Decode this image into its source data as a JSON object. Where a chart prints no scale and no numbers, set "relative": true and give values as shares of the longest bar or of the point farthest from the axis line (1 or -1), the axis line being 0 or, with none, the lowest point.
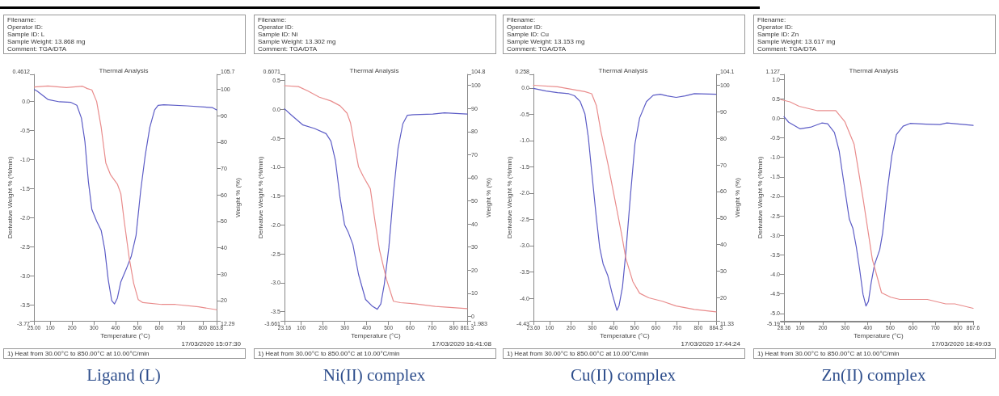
{
  "chart_data": [
    {
      "type": "line",
      "title": "Ligand (L)",
      "subtitle": "Thermal Analysis",
      "xlabel": "Temperature (°C)",
      "ylabel": "Derivative Weight % (%/min)",
      "y2label": "Weight % (%)",
      "marker": "none",
      "line_style": "solid",
      "grid": false,
      "annotations": [
        "Filename:",
        "Operator ID:",
        "Sample ID: L",
        "Sample Weight: 13.868 mg",
        "Comment: TGA/DTA",
        "17/03/2020 15:07:30",
        "1) Heat from 30.00°C to 850.00°C at 10.00°C/min"
      ],
      "xlim": [
        25,
        863.8
      ],
      "xticks": [
        {
          "value": 25,
          "label": "25.00"
        },
        100,
        200,
        300,
        400,
        500,
        600,
        700,
        800,
        863.8
      ],
      "ylim": [
        -3.77,
        0.4612
      ],
      "yticks": [
        0.4612,
        {
          "value": 0,
          "label": "0.0"
        },
        -0.5,
        {
          "value": -1,
          "label": "-1.0"
        },
        -1.5,
        {
          "value": -2,
          "label": "-2.0"
        },
        -2.5,
        {
          "value": -3,
          "label": "-3.0"
        },
        -3.5,
        -3.77
      ],
      "y2lim": [
        12.29,
        105.7
      ],
      "y2ticks": [
        12.29,
        20,
        30,
        40,
        50,
        60,
        70,
        80,
        90,
        100,
        105.7
      ],
      "series": [
        {
          "color": "#5c5cc6",
          "x": [
            27,
            41,
            89,
            142,
            195,
            222,
            243,
            259,
            275,
            291,
            313,
            334,
            350,
            366,
            382,
            395,
            408,
            424,
            451,
            472,
            494,
            515,
            536,
            557,
            579,
            595,
            621,
            728,
            845,
            863.8
          ],
          "values": [
            0.2,
            0.17,
            0.03,
            -0.01,
            -0.02,
            -0.07,
            -0.29,
            -0.69,
            -1.38,
            -1.86,
            -2.06,
            -2.22,
            -2.54,
            -3.06,
            -3.42,
            -3.48,
            -3.38,
            -3.1,
            -2.86,
            -2.66,
            -2.3,
            -1.54,
            -0.93,
            -0.45,
            -0.15,
            -0.07,
            -0.06,
            -0.08,
            -0.11,
            -0.15
          ]
        },
        {
          "color": "#e98c8c",
          "axis": "y2",
          "x": [
            27,
            89,
            174,
            248,
            270,
            291,
            313,
            334,
            355,
            377,
            408,
            424,
            440,
            462,
            483,
            504,
            525,
            611,
            675,
            781,
            863.8
          ],
          "values": [
            100.9,
            101.3,
            100.7,
            101.2,
            100.3,
            99.8,
            95.4,
            85.5,
            72.1,
            67.6,
            64.1,
            60.5,
            49.8,
            36.4,
            26.5,
            20.3,
            19.2,
            18.5,
            18.5,
            17.6,
            16.5
          ]
        }
      ]
    },
    {
      "type": "line",
      "title": "Ni(II) complex",
      "subtitle": "Thermal Analysis",
      "xlabel": "Temperature (°C)",
      "ylabel": "Derivative Weight % (%/min)",
      "y2label": "Weight % (%)",
      "marker": "none",
      "line_style": "solid",
      "grid": false,
      "annotations": [
        "Filename:",
        "Operator ID:",
        "Sample ID: Ni",
        "Sample Weight: 13.302 mg",
        "Comment: TGA/DTA",
        "17/03/2020 16:41:08",
        "1) Heat from 30.00°C to 850.00°C at 10.00°C/min"
      ],
      "xlim": [
        23.16,
        861.3
      ],
      "xticks": [
        23.16,
        100,
        200,
        300,
        400,
        500,
        600,
        700,
        800,
        861.3
      ],
      "ylim": [
        -3.661,
        0.6071
      ],
      "yticks": [
        0.6071,
        0.5,
        {
          "value": 0,
          "label": "0.0"
        },
        -0.5,
        {
          "value": -1,
          "label": "-1.0"
        },
        -1.5,
        {
          "value": -2,
          "label": "-2.0"
        },
        -2.5,
        {
          "value": -3,
          "label": "-3.0"
        },
        -3.5,
        -3.661
      ],
      "y2lim": [
        -1.983,
        104.8
      ],
      "y2ticks": [
        -1.983,
        0,
        10,
        20,
        30,
        40,
        50,
        60,
        70,
        80,
        90,
        100,
        104.8
      ],
      "series": [
        {
          "color": "#5c5cc6",
          "x": [
            23.16,
            55,
            108,
            161,
            214,
            236,
            257,
            278,
            299,
            316,
            337,
            363,
            395,
            427,
            449,
            465,
            481,
            502,
            523,
            544,
            566,
            587,
            619,
            704,
            757,
            861.3
          ],
          "values": [
            0.01,
            -0.1,
            -0.27,
            -0.33,
            -0.42,
            -0.55,
            -0.89,
            -1.53,
            -2.0,
            -2.13,
            -2.34,
            -2.86,
            -3.29,
            -3.41,
            -3.46,
            -3.37,
            -3.03,
            -2.39,
            -1.45,
            -0.68,
            -0.25,
            -0.1,
            -0.09,
            -0.08,
            -0.06,
            -0.08
          ]
        },
        {
          "color": "#e98c8c",
          "axis": "y2",
          "x": [
            23.16,
            87,
            130,
            183,
            236,
            278,
            310,
            326,
            342,
            363,
            385,
            417,
            438,
            459,
            491,
            523,
            555,
            619,
            715,
            861.3
          ],
          "values": [
            99.9,
            99.5,
            97.6,
            94.9,
            93.3,
            91.2,
            88.0,
            83.8,
            75.3,
            64.7,
            60.5,
            55.2,
            41.4,
            28.7,
            16.0,
            6.5,
            5.9,
            5.4,
            4.3,
            3.3
          ]
        }
      ]
    },
    {
      "type": "line",
      "title": "Cu(II) complex",
      "subtitle": "Thermal Analysis",
      "xlabel": "Temperature (°C)",
      "ylabel": "Derivative Weight % (%/min)",
      "y2label": "Weight % (%)",
      "marker": "none",
      "line_style": "solid",
      "grid": false,
      "annotations": [
        "Filename:",
        "Operator ID:",
        "Sample ID: Cu",
        "Sample Weight: 13.153 mg",
        "Comment: TGA/DTA",
        "17/03/2020 17:44:24",
        "1) Heat from 30.00°C to 850.00°C at 10.00°C/min"
      ],
      "xlim": [
        23.6,
        884.3
      ],
      "xticks": [
        {
          "value": 23.6,
          "label": "23.60"
        },
        100,
        200,
        300,
        400,
        500,
        600,
        700,
        800,
        884.3
      ],
      "ylim": [
        -4.43,
        0.258
      ],
      "yticks": [
        0.258,
        {
          "value": 0,
          "label": "0.0"
        },
        -0.5,
        {
          "value": -1,
          "label": "-1.0"
        },
        -1.5,
        {
          "value": -2,
          "label": "-2.0"
        },
        -2.5,
        {
          "value": -3,
          "label": "-3.0"
        },
        -3.5,
        {
          "value": -4,
          "label": "-4.0"
        },
        -4.43
      ],
      "y2lim": [
        11.33,
        104.1
      ],
      "y2ticks": [
        11.33,
        20,
        30,
        40,
        50,
        60,
        70,
        80,
        90,
        100,
        104.1
      ],
      "series": [
        {
          "color": "#5c5cc6",
          "x": [
            23.6,
            83,
            137,
            190,
            217,
            244,
            266,
            282,
            298,
            320,
            336,
            352,
            374,
            395,
            417,
            427,
            443,
            459,
            481,
            502,
            524,
            556,
            588,
            621,
            653,
            696,
            739,
            782,
            884.3
          ],
          "values": [
            -0.01,
            -0.06,
            -0.09,
            -0.11,
            -0.15,
            -0.26,
            -0.49,
            -0.93,
            -1.59,
            -2.47,
            -3.04,
            -3.35,
            -3.57,
            -3.92,
            -4.23,
            -4.14,
            -3.79,
            -3.13,
            -2.03,
            -1.06,
            -0.57,
            -0.26,
            -0.14,
            -0.12,
            -0.15,
            -0.18,
            -0.15,
            -0.11,
            -0.12
          ]
        },
        {
          "color": "#e98c8c",
          "axis": "y2",
          "x": [
            23.6,
            137,
            201,
            266,
            298,
            320,
            341,
            374,
            406,
            438,
            459,
            492,
            524,
            567,
            631,
            696,
            782,
            884.3
          ],
          "values": [
            100,
            99.4,
            98.5,
            97.6,
            96.8,
            92.4,
            82.8,
            70.6,
            57.5,
            44.4,
            34.8,
            26.1,
            21.7,
            20.0,
            18.7,
            16.9,
            15.6,
            14.7
          ]
        }
      ]
    },
    {
      "type": "line",
      "title": "Zn(II) complex",
      "subtitle": "Thermal Analysis",
      "xlabel": "Temperature (°C)",
      "ylabel": "Derivative Weight % (%/min)",
      "marker": "none",
      "line_style": "solid",
      "grid": false,
      "annotations": [
        "Filename:",
        "Operator ID:",
        "Sample ID: Zn",
        "Sample Weight: 13.617 mg",
        "Comment: TGA/DTA",
        "17/03/2020 18:49:03",
        "1) Heat from 30.00°C to 850.00°C at 10.00°C/min"
      ],
      "xlim": [
        28.36,
        867.6
      ],
      "xticks": [
        28.36,
        100,
        200,
        300,
        400,
        500,
        600,
        700,
        800,
        867.6
      ],
      "ylim": [
        -5.19,
        1.127
      ],
      "yticks": [
        1.127,
        {
          "value": 1,
          "label": "1.0"
        },
        0.5,
        {
          "value": 0,
          "label": "0.0"
        },
        -0.5,
        {
          "value": -1,
          "label": "-1.0"
        },
        -1.5,
        {
          "value": -2,
          "label": "-2.0"
        },
        -2.5,
        {
          "value": -3,
          "label": "-3.0"
        },
        -3.5,
        {
          "value": -4,
          "label": "-4.0"
        },
        -4.5,
        {
          "value": -5,
          "label": "-5.0"
        },
        -5.19
      ],
      "series": [
        {
          "color": "#5c5cc6",
          "x": [
            28.36,
            49,
            100,
            150,
            196,
            222,
            252,
            273,
            288,
            303,
            318,
            334,
            349,
            364,
            379,
            392,
            403,
            415,
            430,
            453,
            466,
            486,
            507,
            527,
            557,
            588,
            659,
            720,
            751,
            867.6
          ],
          "values": [
            0.04,
            -0.1,
            -0.27,
            -0.22,
            -0.12,
            -0.14,
            -0.36,
            -0.83,
            -1.42,
            -2.0,
            -2.58,
            -2.82,
            -3.29,
            -3.87,
            -4.51,
            -4.81,
            -4.69,
            -4.22,
            -3.75,
            -3.37,
            -2.94,
            -1.88,
            -0.95,
            -0.42,
            -0.2,
            -0.13,
            -0.15,
            -0.16,
            -0.12,
            -0.18
          ]
        }
      ]
    },
    {
      "type": "line",
      "relative": true,
      "marker": "none",
      "line_style": "solid",
      "tick_labels": false,
      "categories": [
        null,
        null,
        null,
        null,
        null,
        null,
        null,
        null,
        null,
        null,
        null,
        null,
        null,
        null,
        null,
        null,
        null,
        null,
        null,
        null,
        null,
        null
      ],
      "series": [
        {
          "color": "#e98c8c",
          "values": [
            1,
            0.99,
            0.97,
            0.96,
            0.95,
            0.95,
            0.95,
            0.9,
            0.8,
            0.55,
            0.28,
            0.13,
            0.11,
            0.1,
            0.1,
            0.1,
            0.1,
            0.09,
            0.08,
            0.08,
            0.07,
            0.06
          ]
        }
      ]
    }
  ]
}
